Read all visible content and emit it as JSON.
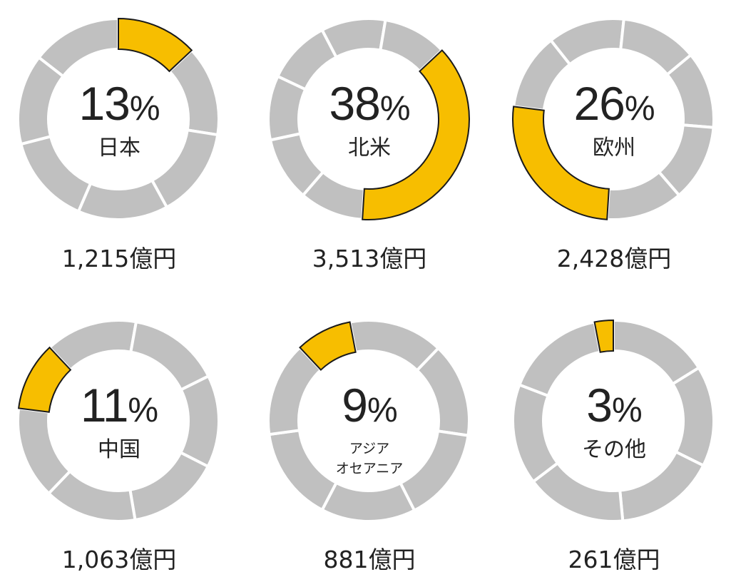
{
  "chart_data": {
    "type": "pie",
    "style": "donut",
    "colors": {
      "highlight": "#F7BE00",
      "rest": "#C0C0C0",
      "gap": "#FFFFFF",
      "outline": "#1A1A1A"
    },
    "segments_within_rest": 6,
    "items": [
      {
        "region": "日本",
        "percent": 13,
        "amount": "1,215",
        "unit": "億円",
        "start_percent": 0
      },
      {
        "region": "北米",
        "percent": 38,
        "amount": "3,513",
        "unit": "億円",
        "start_percent": 13
      },
      {
        "region": "欧州",
        "percent": 26,
        "amount": "2,428",
        "unit": "億円",
        "start_percent": 51
      },
      {
        "region": "中国",
        "percent": 11,
        "amount": "1,063",
        "unit": "億円",
        "start_percent": 77
      },
      {
        "region_lines": [
          "アジア",
          "オセアニア"
        ],
        "percent": 9,
        "amount": "881",
        "unit": "億円",
        "start_percent": 88
      },
      {
        "region": "その他",
        "percent": 3,
        "amount": "261",
        "unit": "億円",
        "start_percent": 97
      }
    ]
  }
}
